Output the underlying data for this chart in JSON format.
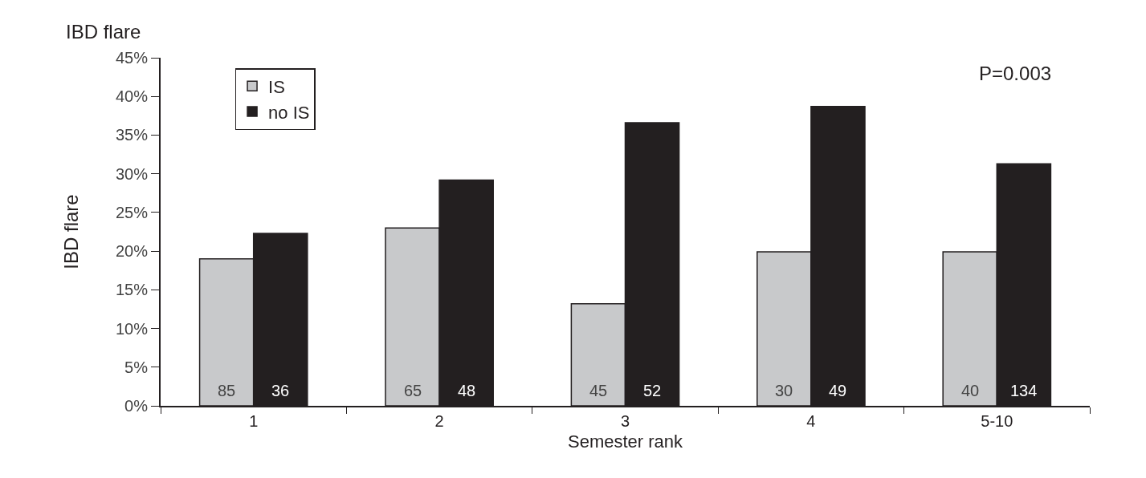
{
  "chart_data": {
    "type": "bar",
    "title": "IBD flare",
    "ylabel": "IBD flare",
    "xlabel": "Semester rank",
    "categories": [
      "1",
      "2",
      "3",
      "4",
      "5-10"
    ],
    "series": [
      {
        "name": "IS",
        "color": "#c8c9cb",
        "values": [
          19,
          23,
          13.2,
          19.9,
          19.9
        ]
      },
      {
        "name": "no IS",
        "color": "#231f20",
        "values": [
          22.3,
          29.2,
          36.6,
          38.7,
          31.3
        ]
      }
    ],
    "ylim": [
      0,
      45
    ],
    "yticks": [
      {
        "value": 0,
        "label": "0%"
      },
      {
        "value": 5,
        "label": "5%"
      },
      {
        "value": 10,
        "label": "10%"
      },
      {
        "value": 15,
        "label": "15%"
      },
      {
        "value": 20,
        "label": "20%"
      },
      {
        "value": 25,
        "label": "25%"
      },
      {
        "value": 30,
        "label": "30%"
      },
      {
        "value": 35,
        "label": "35%"
      },
      {
        "value": 40,
        "label": "40%"
      },
      {
        "value": 45,
        "label": "45%"
      }
    ],
    "annotations": [
      "P=0.003",
      {
        "text": "85",
        "x": "1",
        "y": 0
      },
      {
        "text": "36",
        "x": "1",
        "y": 0
      },
      {
        "text": "65",
        "x": "2",
        "y": 0
      },
      {
        "text": "48",
        "x": "2",
        "y": 0
      },
      {
        "text": "45",
        "x": "3",
        "y": 0
      },
      {
        "text": "52",
        "x": "3",
        "y": 0
      },
      {
        "text": "30",
        "x": "4",
        "y": 0
      },
      {
        "text": "49",
        "x": "4",
        "y": 0
      },
      {
        "text": "40",
        "x": "5-10",
        "y": 0
      },
      {
        "text": "134",
        "x": "5-10",
        "y": 0
      }
    ],
    "grid": false,
    "legend": "top left"
  }
}
